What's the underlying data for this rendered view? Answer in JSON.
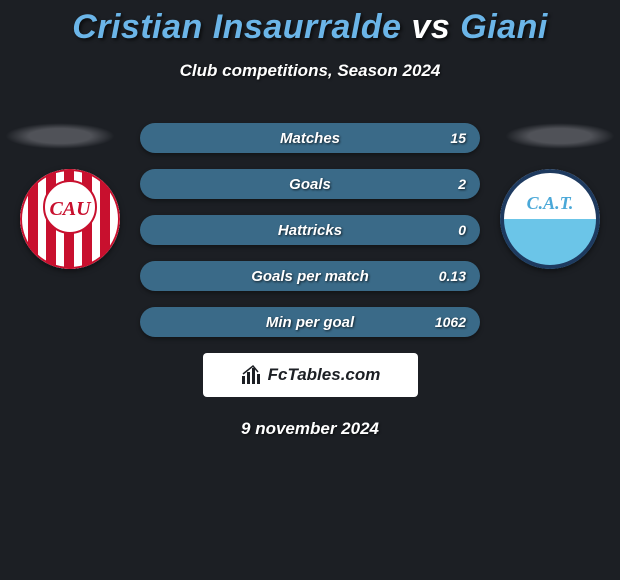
{
  "title": {
    "player1": "Cristian Insaurralde",
    "vs": "vs",
    "player2": "Giani",
    "color_player": "#6bb5e8",
    "color_vs": "#ffffff"
  },
  "subtitle": "Club competitions, Season 2024",
  "badges": {
    "left": {
      "label": "CAU",
      "text_color": "#c8102e",
      "bg": "#ffffff",
      "stripe_color": "#c8102e"
    },
    "right": {
      "label": "C.A.T.",
      "text_color": "#4aa8d8",
      "bg_top": "#ffffff",
      "bg_bottom": "#6bc5e8",
      "border": "#1e3a5f"
    }
  },
  "stats": {
    "row_bg": "#3a6a88",
    "rows": [
      {
        "label": "Matches",
        "right": "15"
      },
      {
        "label": "Goals",
        "right": "2"
      },
      {
        "label": "Hattricks",
        "right": "0"
      },
      {
        "label": "Goals per match",
        "right": "0.13"
      },
      {
        "label": "Min per goal",
        "right": "1062"
      }
    ]
  },
  "brand": {
    "text": "FcTables.com",
    "icon": "chart-icon"
  },
  "date": "9 november 2024",
  "colors": {
    "background": "#1c1f24",
    "text": "#ffffff"
  }
}
